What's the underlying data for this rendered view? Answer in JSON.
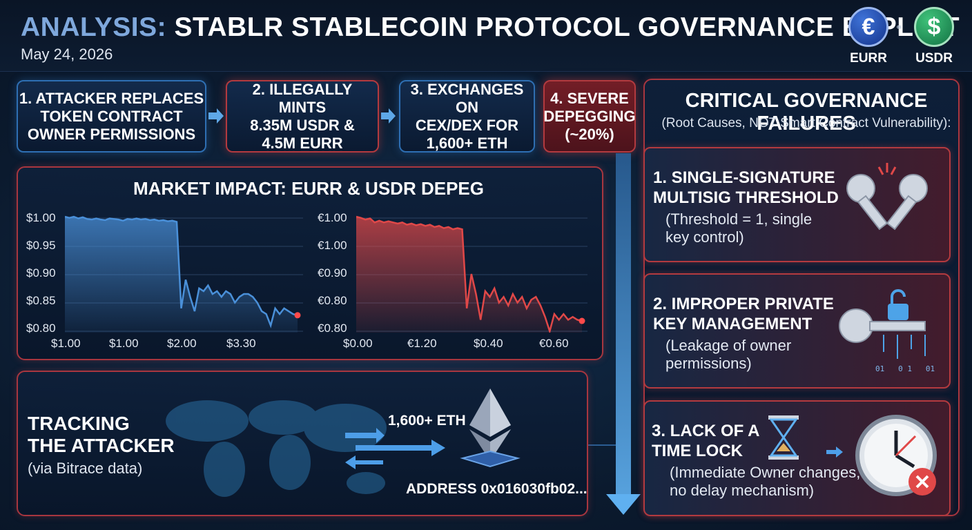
{
  "header": {
    "title_prefix": "ANALYSIS:",
    "title_main": "STABLR STABLECOIN PROTOCOL GOVERNANCE EXPLOIT",
    "date": "May 24, 2026",
    "coins": [
      {
        "label": "EURR",
        "symbol": "€",
        "color": "#1f4fb8"
      },
      {
        "label": "USDR",
        "symbol": "$",
        "color": "#1f9a5a"
      }
    ]
  },
  "steps": [
    {
      "label": "1. ATTACKER REPLACES\nTOKEN CONTRACT\nOWNER PERMISSIONS"
    },
    {
      "label": "2. ILLEGALLY MINTS\n8.35M USDR &\n4.5M EURR"
    },
    {
      "label": "3. EXCHANGES ON\nCEX/DEX FOR\n1,600+ ETH"
    },
    {
      "label": "4. SEVERE\nDEPEGGING\n(~20%)"
    }
  ],
  "market_impact": {
    "title": "MARKET IMPACT: EURR & USDR DEPEG"
  },
  "chart_data": [
    {
      "type": "line",
      "title": "",
      "series_color": "#4a90d9",
      "y_tick_labels": [
        "$1.00",
        "$0.95",
        "$0.90",
        "$0.85",
        "$0.80"
      ],
      "x_tick_labels": [
        "$1.00",
        "$1.00",
        "$2.00",
        "$3.30"
      ],
      "ylim": [
        0.8,
        1.0
      ],
      "values": [
        1.0,
        0.998,
        1.0,
        0.997,
        0.999,
        0.996,
        0.995,
        0.997,
        0.995,
        0.994,
        0.997,
        0.996,
        0.995,
        0.993,
        0.996,
        0.995,
        0.997,
        0.995,
        0.996,
        0.994,
        0.995,
        0.993,
        0.994,
        0.992,
        0.993,
        0.991,
        0.84,
        0.89,
        0.86,
        0.835,
        0.875,
        0.87,
        0.88,
        0.865,
        0.87,
        0.86,
        0.87,
        0.865,
        0.85,
        0.86,
        0.865,
        0.865,
        0.86,
        0.85,
        0.835,
        0.83,
        0.81,
        0.84,
        0.83,
        0.84,
        0.835,
        0.83,
        0.828
      ]
    },
    {
      "type": "line",
      "title": "",
      "series_color": "#e04848",
      "y_tick_labels": [
        "€1.00",
        "€1.00",
        "€0.90",
        "€0.80",
        "€0.80"
      ],
      "x_tick_labels": [
        "$0.00",
        "€1.20",
        "$0.40",
        "€0.60"
      ],
      "ylim": [
        0.8,
        1.0
      ],
      "values": [
        1.0,
        0.998,
        0.995,
        0.997,
        0.99,
        0.993,
        0.99,
        0.992,
        0.99,
        0.988,
        0.99,
        0.986,
        0.988,
        0.985,
        0.987,
        0.984,
        0.986,
        0.982,
        0.984,
        0.98,
        0.982,
        0.978,
        0.98,
        0.978,
        0.84,
        0.9,
        0.865,
        0.82,
        0.87,
        0.86,
        0.875,
        0.85,
        0.86,
        0.845,
        0.865,
        0.85,
        0.86,
        0.84,
        0.855,
        0.86,
        0.845,
        0.825,
        0.8,
        0.83,
        0.82,
        0.83,
        0.82,
        0.825,
        0.82,
        0.818
      ]
    }
  ],
  "tracking": {
    "title": "TRACKING\nTHE ATTACKER",
    "subtitle": "(via Bitrace data)",
    "eth_amount": "1,600+ ETH",
    "address": "ADDRESS 0x016030fb02..."
  },
  "governance": {
    "title": "CRITICAL GOVERNANCE FAILURES",
    "subtitle": "(Root Causes, NOT Smart Contract Vulnerability):",
    "failures": [
      {
        "title": "1. SINGLE-SIGNATURE\nMULTISIG THRESHOLD",
        "desc": "(Threshold = 1, single\nkey control)",
        "icon": "broken-keys-icon"
      },
      {
        "title": "2. IMPROPER PRIVATE\nKEY MANAGEMENT",
        "desc": "(Leakage of owner\npermissions)",
        "icon": "key-lock-icon"
      },
      {
        "title": "3. LACK OF A\nTIME LOCK",
        "desc": "(Immediate Owner changes,\nno delay mechanism)",
        "icon": "clock-icon"
      }
    ],
    "binary_text": "01   0 1   01"
  }
}
